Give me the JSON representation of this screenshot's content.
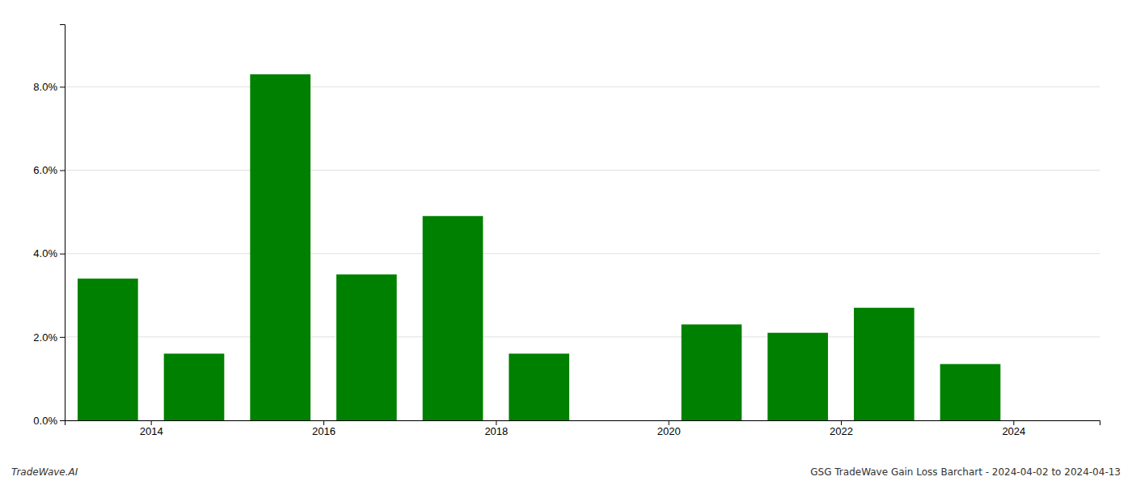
{
  "chart_data": {
    "type": "bar",
    "x": [
      2013,
      2014,
      2015,
      2016,
      2017,
      2018,
      2019,
      2020,
      2021,
      2022,
      2023
    ],
    "values": [
      0.034,
      0.016,
      0.083,
      0.035,
      0.049,
      0.016,
      0.0,
      0.023,
      0.021,
      0.027,
      0.0135
    ],
    "color": "#008000",
    "xlim": [
      2012.5,
      2024.5
    ],
    "xticks": [
      {
        "value": 2013.5,
        "label": "2014"
      },
      {
        "value": 2015.5,
        "label": "2016"
      },
      {
        "value": 2017.5,
        "label": "2018"
      },
      {
        "value": 2019.5,
        "label": "2020"
      },
      {
        "value": 2021.5,
        "label": "2022"
      },
      {
        "value": 2023.5,
        "label": "2024"
      }
    ],
    "ylim": [
      0,
      0.095
    ],
    "yticks": [
      {
        "value": 0.0,
        "label": "0.0%"
      },
      {
        "value": 0.02,
        "label": "2.0%"
      },
      {
        "value": 0.04,
        "label": "4.0%"
      },
      {
        "value": 0.06,
        "label": "6.0%"
      },
      {
        "value": 0.08,
        "label": "8.0%"
      }
    ],
    "grid": true,
    "annotations": [
      "TradeWave.AI",
      "GSG TradeWave Gain Loss Barchart - 2024-04-02 to 2024-04-13"
    ]
  }
}
